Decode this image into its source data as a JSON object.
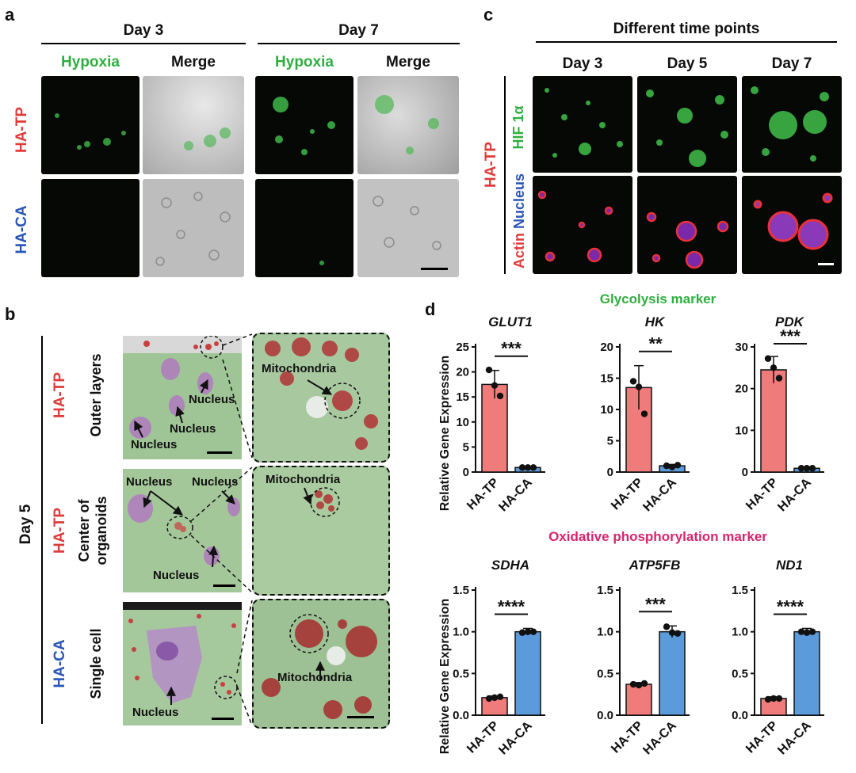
{
  "panel_a": {
    "letter": "a",
    "day3": "Day 3",
    "day7": "Day 7",
    "col_hypoxia": "Hypoxia",
    "col_merge": "Merge",
    "row1": "HA-TP",
    "row2": "HA-CA"
  },
  "panel_b": {
    "letter": "b",
    "day_label": "Day 5",
    "row1_group": "HA-TP",
    "row1_desc": "Outer layers",
    "row2_group": "HA-TP",
    "row2_desc_line1": "Center of",
    "row2_desc_line2": "organoids",
    "row3_group": "HA-CA",
    "row3_desc": "Single cell",
    "nucleus": "Nucleus",
    "mitochondria": "Mitochondria"
  },
  "panel_c": {
    "letter": "c",
    "header": "Different time points",
    "days": [
      "Day 3",
      "Day 5",
      "Day 7"
    ],
    "group": "HA-TP",
    "row1_label": "HIF 1α",
    "row2_label_actin": "Actin",
    "row2_label_nucleus": "Nucleus"
  },
  "panel_d": {
    "letter": "d",
    "glycolysis_title": "Glycolysis marker",
    "oxphos_title": "Oxidative phosphorylation marker",
    "ylabel": "Relative Gene Expression",
    "colors": {
      "HA-TP": "#f07b7b",
      "HA-CA": "#5b9bdc",
      "glycolysis": "#2fae3f",
      "oxphos": "#d6246e"
    }
  },
  "chart_data": [
    {
      "type": "bar",
      "title": "GLUT1",
      "categories": [
        "HA-TP",
        "HA-CA"
      ],
      "values": [
        17.5,
        0.9
      ],
      "errors": [
        2.8,
        0.1
      ],
      "points": [
        [
          20.4,
          17.3,
          15.2
        ],
        [
          0.9,
          0.9,
          0.9
        ]
      ],
      "ylim": [
        0,
        25
      ],
      "yticks": [
        0,
        5,
        10,
        15,
        20,
        25
      ],
      "ytick_labels": [
        "0",
        "5",
        "10",
        "15",
        "20",
        "25"
      ],
      "significance": "***",
      "ylabel": "Relative Gene Expression"
    },
    {
      "type": "bar",
      "title": "HK",
      "categories": [
        "HA-TP",
        "HA-CA"
      ],
      "values": [
        13.5,
        1.0
      ],
      "errors": [
        3.5,
        0.2
      ],
      "points": [
        [
          14.5,
          13.6,
          9.3
        ],
        [
          1.0,
          0.8,
          1.1
        ]
      ],
      "ylim": [
        0,
        20
      ],
      "yticks": [
        0,
        5,
        10,
        15,
        20
      ],
      "ytick_labels": [
        "0",
        "5",
        "10",
        "15",
        "20"
      ],
      "significance": "**",
      "ylabel": ""
    },
    {
      "type": "bar",
      "title": "PDK",
      "categories": [
        "HA-TP",
        "HA-CA"
      ],
      "values": [
        24.5,
        0.9
      ],
      "errors": [
        3.2,
        0.1
      ],
      "points": [
        [
          27.2,
          25.0,
          22.5
        ],
        [
          0.9,
          0.9,
          0.9
        ]
      ],
      "ylim": [
        0,
        30
      ],
      "yticks": [
        0,
        10,
        20,
        30
      ],
      "ytick_labels": [
        "0",
        "10",
        "20",
        "30"
      ],
      "significance": "***",
      "ylabel": ""
    },
    {
      "type": "bar",
      "title": "SDHA",
      "categories": [
        "HA-TP",
        "HA-CA"
      ],
      "values": [
        0.21,
        1.0
      ],
      "errors": [
        0.02,
        0.04
      ],
      "points": [
        [
          0.2,
          0.21,
          0.22
        ],
        [
          0.99,
          1.0,
          1.0
        ]
      ],
      "ylim": [
        0,
        1.5
      ],
      "yticks": [
        0,
        0.5,
        1.0,
        1.5
      ],
      "ytick_labels": [
        "0.0",
        "0.5",
        "1.0",
        "1.5"
      ],
      "significance": "****",
      "ylabel": "Relative Gene Expression"
    },
    {
      "type": "bar",
      "title": "ATP5FB",
      "categories": [
        "HA-TP",
        "HA-CA"
      ],
      "values": [
        0.37,
        1.0
      ],
      "errors": [
        0.02,
        0.07
      ],
      "points": [
        [
          0.37,
          0.36,
          0.38
        ],
        [
          1.06,
          0.99,
          0.98
        ]
      ],
      "ylim": [
        0,
        1.5
      ],
      "yticks": [
        0,
        0.5,
        1.0,
        1.5
      ],
      "ytick_labels": [
        "0.0",
        "0.5",
        "1.0",
        "1.5"
      ],
      "significance": "***",
      "ylabel": ""
    },
    {
      "type": "bar",
      "title": "ND1",
      "categories": [
        "HA-TP",
        "HA-CA"
      ],
      "values": [
        0.2,
        1.0
      ],
      "errors": [
        0.02,
        0.04
      ],
      "points": [
        [
          0.19,
          0.2,
          0.2
        ],
        [
          1.0,
          0.99,
          1.0
        ]
      ],
      "ylim": [
        0,
        1.5
      ],
      "yticks": [
        0,
        0.5,
        1.0,
        1.5
      ],
      "ytick_labels": [
        "0.0",
        "0.5",
        "1.0",
        "1.5"
      ],
      "significance": "****",
      "ylabel": ""
    }
  ]
}
